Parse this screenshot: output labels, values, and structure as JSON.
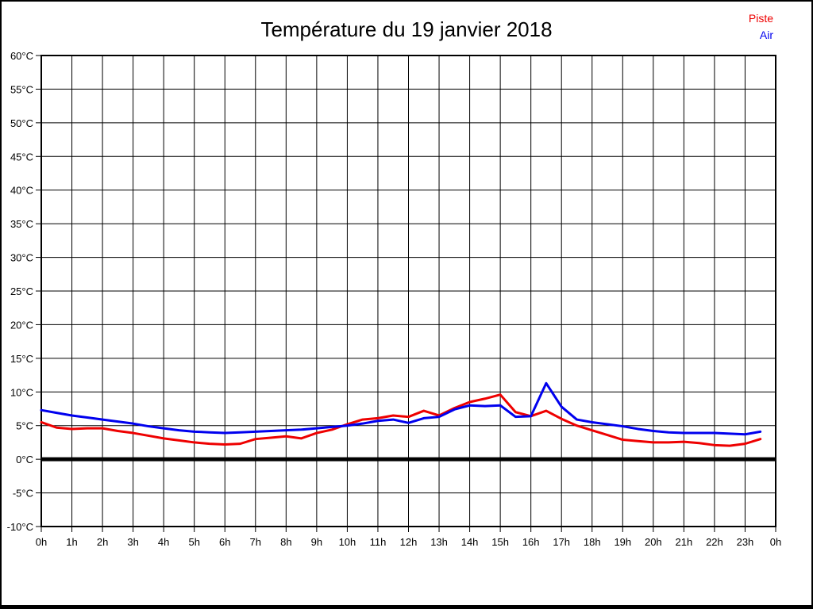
{
  "page": {
    "title": "Température du 19 janvier 2018"
  },
  "legend": {
    "items": [
      {
        "label": "Piste",
        "color": "#ee0000"
      },
      {
        "label": "Air",
        "color": "#0000ee"
      }
    ]
  },
  "chart_data": {
    "type": "line",
    "title": "Température du 19 janvier 2018",
    "xlabel": "",
    "ylabel": "",
    "x_unit": "hour-of-day",
    "xlim": [
      0,
      24
    ],
    "ylim": [
      -10,
      60
    ],
    "grid": true,
    "y_tick_step": 5,
    "zero_line_value": 0,
    "legend_position": "top-right",
    "x_tick_labels": [
      "0h",
      "1h",
      "2h",
      "3h",
      "4h",
      "5h",
      "6h",
      "7h",
      "8h",
      "9h",
      "10h",
      "11h",
      "12h",
      "13h",
      "14h",
      "15h",
      "16h",
      "17h",
      "18h",
      "19h",
      "20h",
      "21h",
      "22h",
      "23h",
      "0h"
    ],
    "y_tick_labels": [
      "60°C",
      "55°C",
      "50°C",
      "45°C",
      "40°C",
      "35°C",
      "30°C",
      "25°C",
      "20°C",
      "15°C",
      "10°C",
      "5°C",
      "0°C",
      "-5°C",
      "-10°C"
    ],
    "x": [
      0,
      0.5,
      1,
      1.5,
      2,
      2.5,
      3,
      3.5,
      4,
      4.5,
      5,
      5.5,
      6,
      6.5,
      7,
      7.5,
      8,
      8.5,
      9,
      9.5,
      10,
      10.5,
      11,
      11.5,
      12,
      12.5,
      13,
      13.5,
      14,
      14.5,
      15,
      15.5,
      16,
      16.5,
      17,
      17.5,
      18,
      18.5,
      19,
      19.5,
      20,
      20.5,
      21,
      21.5,
      22,
      22.5,
      23,
      23.5
    ],
    "series": [
      {
        "name": "Piste",
        "color": "#ee0000",
        "values": [
          5.5,
          4.7,
          4.5,
          4.6,
          4.6,
          4.2,
          3.9,
          3.5,
          3.1,
          2.8,
          2.5,
          2.3,
          2.2,
          2.3,
          3.0,
          3.2,
          3.4,
          3.1,
          3.9,
          4.4,
          5.2,
          5.9,
          6.1,
          6.5,
          6.3,
          7.2,
          6.5,
          7.6,
          8.5,
          9.0,
          9.6,
          7.0,
          6.4,
          7.2,
          6.0,
          5.0,
          4.3,
          3.6,
          2.9,
          2.7,
          2.5,
          2.5,
          2.6,
          2.4,
          2.1,
          2.0,
          2.3,
          3.0
        ]
      },
      {
        "name": "Air",
        "color": "#0000ee",
        "values": [
          7.3,
          6.9,
          6.5,
          6.2,
          5.9,
          5.6,
          5.3,
          4.9,
          4.6,
          4.3,
          4.1,
          4.0,
          3.9,
          4.0,
          4.1,
          4.2,
          4.3,
          4.4,
          4.6,
          4.8,
          5.0,
          5.3,
          5.7,
          5.9,
          5.4,
          6.1,
          6.3,
          7.4,
          8.0,
          7.9,
          8.0,
          6.3,
          6.4,
          11.3,
          7.8,
          5.9,
          5.5,
          5.2,
          4.9,
          4.5,
          4.2,
          4.0,
          3.9,
          3.9,
          3.9,
          3.8,
          3.7,
          4.1
        ]
      }
    ]
  }
}
